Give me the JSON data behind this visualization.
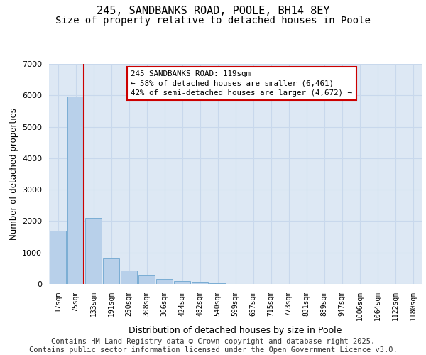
{
  "title_line1": "245, SANDBANKS ROAD, POOLE, BH14 8EY",
  "title_line2": "Size of property relative to detached houses in Poole",
  "xlabel": "Distribution of detached houses by size in Poole",
  "ylabel": "Number of detached properties",
  "categories": [
    "17sqm",
    "75sqm",
    "133sqm",
    "191sqm",
    "250sqm",
    "308sqm",
    "366sqm",
    "424sqm",
    "482sqm",
    "540sqm",
    "599sqm",
    "657sqm",
    "715sqm",
    "773sqm",
    "831sqm",
    "889sqm",
    "947sqm",
    "1006sqm",
    "1064sqm",
    "1122sqm",
    "1180sqm"
  ],
  "values": [
    1700,
    5950,
    2100,
    820,
    430,
    270,
    150,
    80,
    60,
    20,
    10,
    0,
    0,
    0,
    0,
    0,
    0,
    0,
    0,
    0,
    0
  ],
  "bar_color": "#b8d0ea",
  "bar_edge_color": "#7aadd4",
  "vline_color": "#cc0000",
  "vline_x": 1.45,
  "annotation_text": "245 SANDBANKS ROAD: 119sqm\n← 58% of detached houses are smaller (6,461)\n42% of semi-detached houses are larger (4,672) →",
  "annotation_box_color": "#cc0000",
  "ylim": [
    0,
    7000
  ],
  "yticks": [
    0,
    1000,
    2000,
    3000,
    4000,
    5000,
    6000,
    7000
  ],
  "grid_color": "#c8d8ec",
  "background_color": "#dde8f4",
  "footer_line1": "Contains HM Land Registry data © Crown copyright and database right 2025.",
  "footer_line2": "Contains public sector information licensed under the Open Government Licence v3.0.",
  "footer_fontsize": 7.5,
  "title_fontsize1": 11,
  "title_fontsize2": 10
}
